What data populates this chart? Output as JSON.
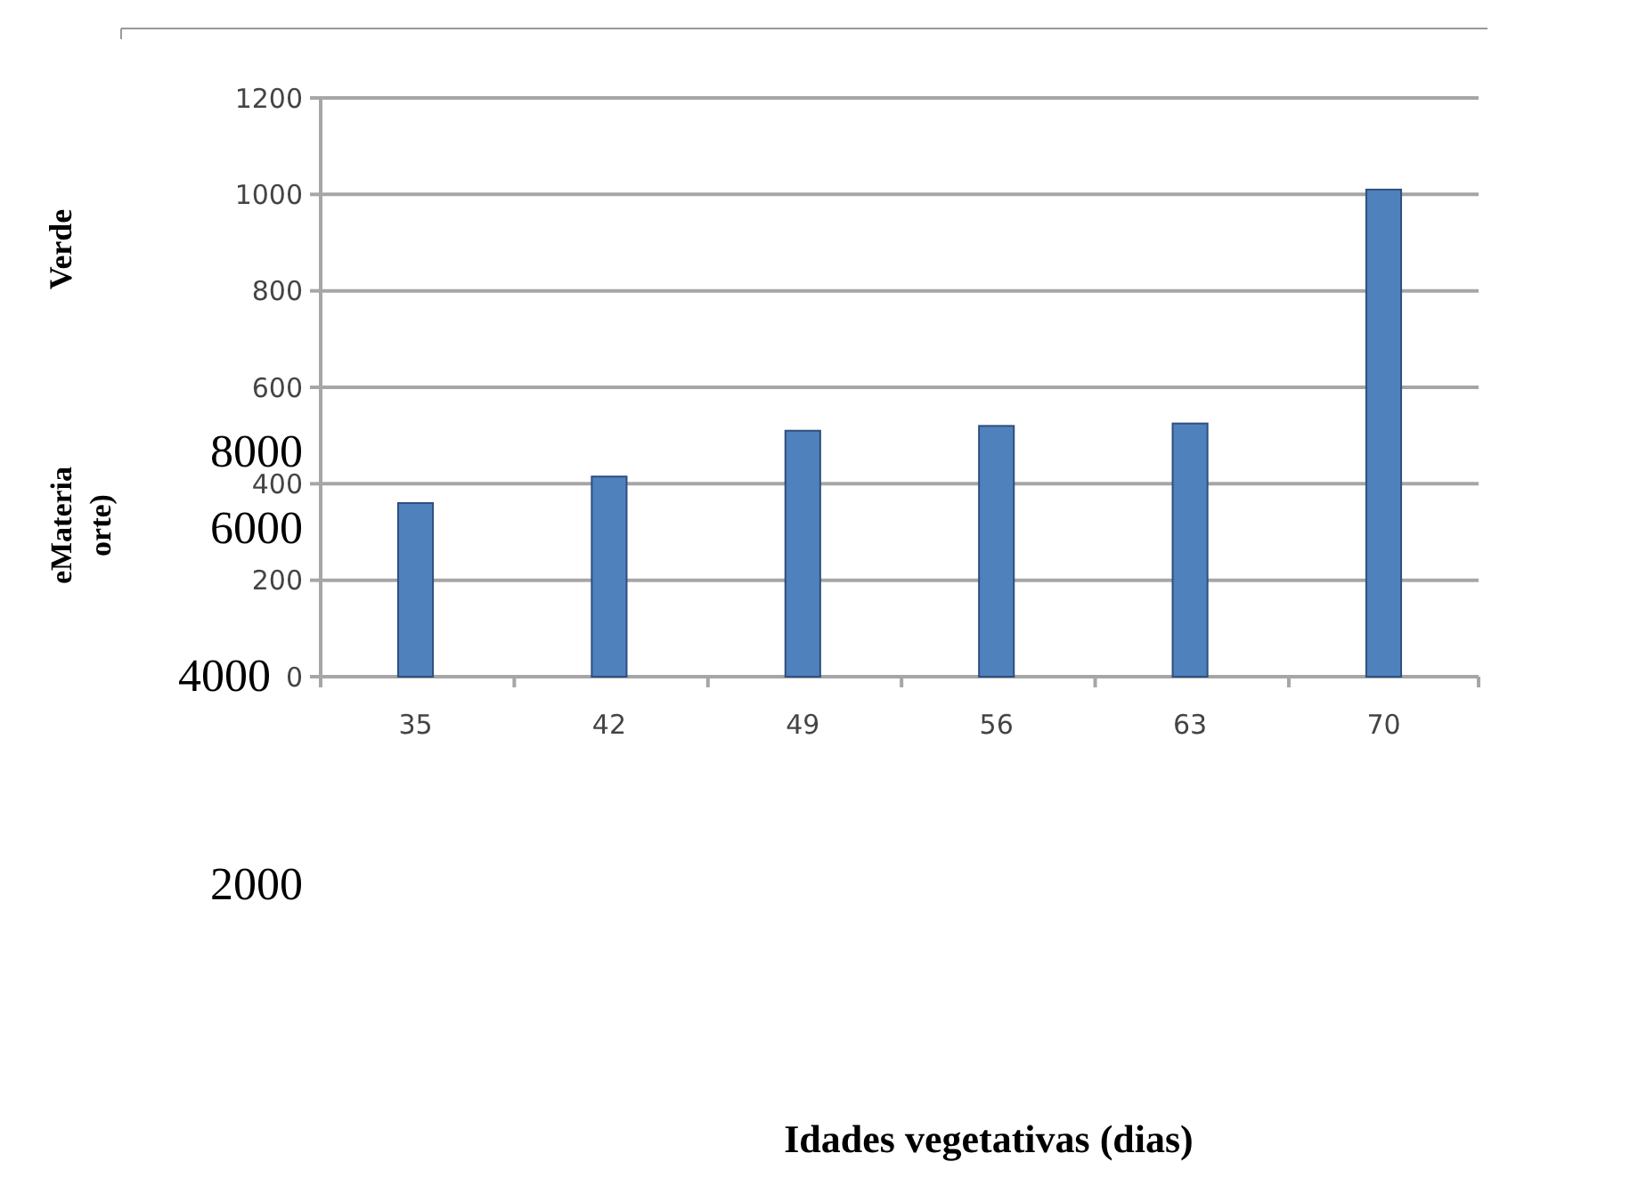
{
  "chart_data": {
    "type": "bar",
    "categories": [
      "35",
      "42",
      "49",
      "56",
      "63",
      "70"
    ],
    "values": [
      360,
      415,
      510,
      520,
      525,
      1010
    ],
    "color": "#4f81bd",
    "ylim": [
      0,
      1200
    ],
    "yticks": [
      0,
      200,
      400,
      600,
      800,
      1000,
      1200
    ],
    "grid": "y",
    "annotations": [
      "Verde",
      "eMateria",
      "orte)",
      "8000",
      "6000",
      "4000",
      "2000",
      "Idades vegetativas (dias)"
    ]
  }
}
